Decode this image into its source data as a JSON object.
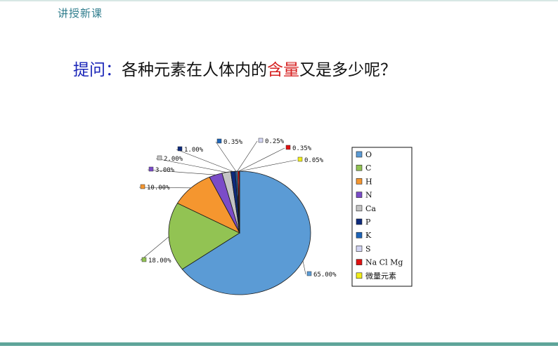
{
  "header": {
    "section_label": "讲授新课"
  },
  "question": {
    "prefix": "提问：",
    "text_before": "各种元素在人体内的",
    "highlight": "含量",
    "text_after": "又是多少呢？"
  },
  "chart_data": {
    "type": "pie",
    "title": "",
    "legend_position": "right",
    "slices": [
      {
        "name": "O",
        "value": 65.0,
        "label": "65.00%",
        "color": "#5b9bd5"
      },
      {
        "name": "C",
        "value": 18.0,
        "label": "18.00%",
        "color": "#92c353"
      },
      {
        "name": "H",
        "value": 10.0,
        "label": "10.00%",
        "color": "#f5962f"
      },
      {
        "name": "N",
        "value": 3.0,
        "label": "3.00%",
        "color": "#7b4cc8"
      },
      {
        "name": "Ca",
        "value": 2.0,
        "label": "2.00%",
        "color": "#c4c4c4"
      },
      {
        "name": "P",
        "value": 1.0,
        "label": "1.00%",
        "color": "#0d2a7c"
      },
      {
        "name": "K",
        "value": 0.35,
        "label": "0.35%",
        "color": "#1d64b8"
      },
      {
        "name": "S",
        "value": 0.25,
        "label": "0.25%",
        "color": "#d2d4f2"
      },
      {
        "name": "Na Cl Mg",
        "value": 0.35,
        "label": "0.35%",
        "color": "#e01010"
      },
      {
        "name": "微量元素",
        "value": 0.05,
        "label": "0.05%",
        "color": "#f2ee1a"
      }
    ]
  }
}
